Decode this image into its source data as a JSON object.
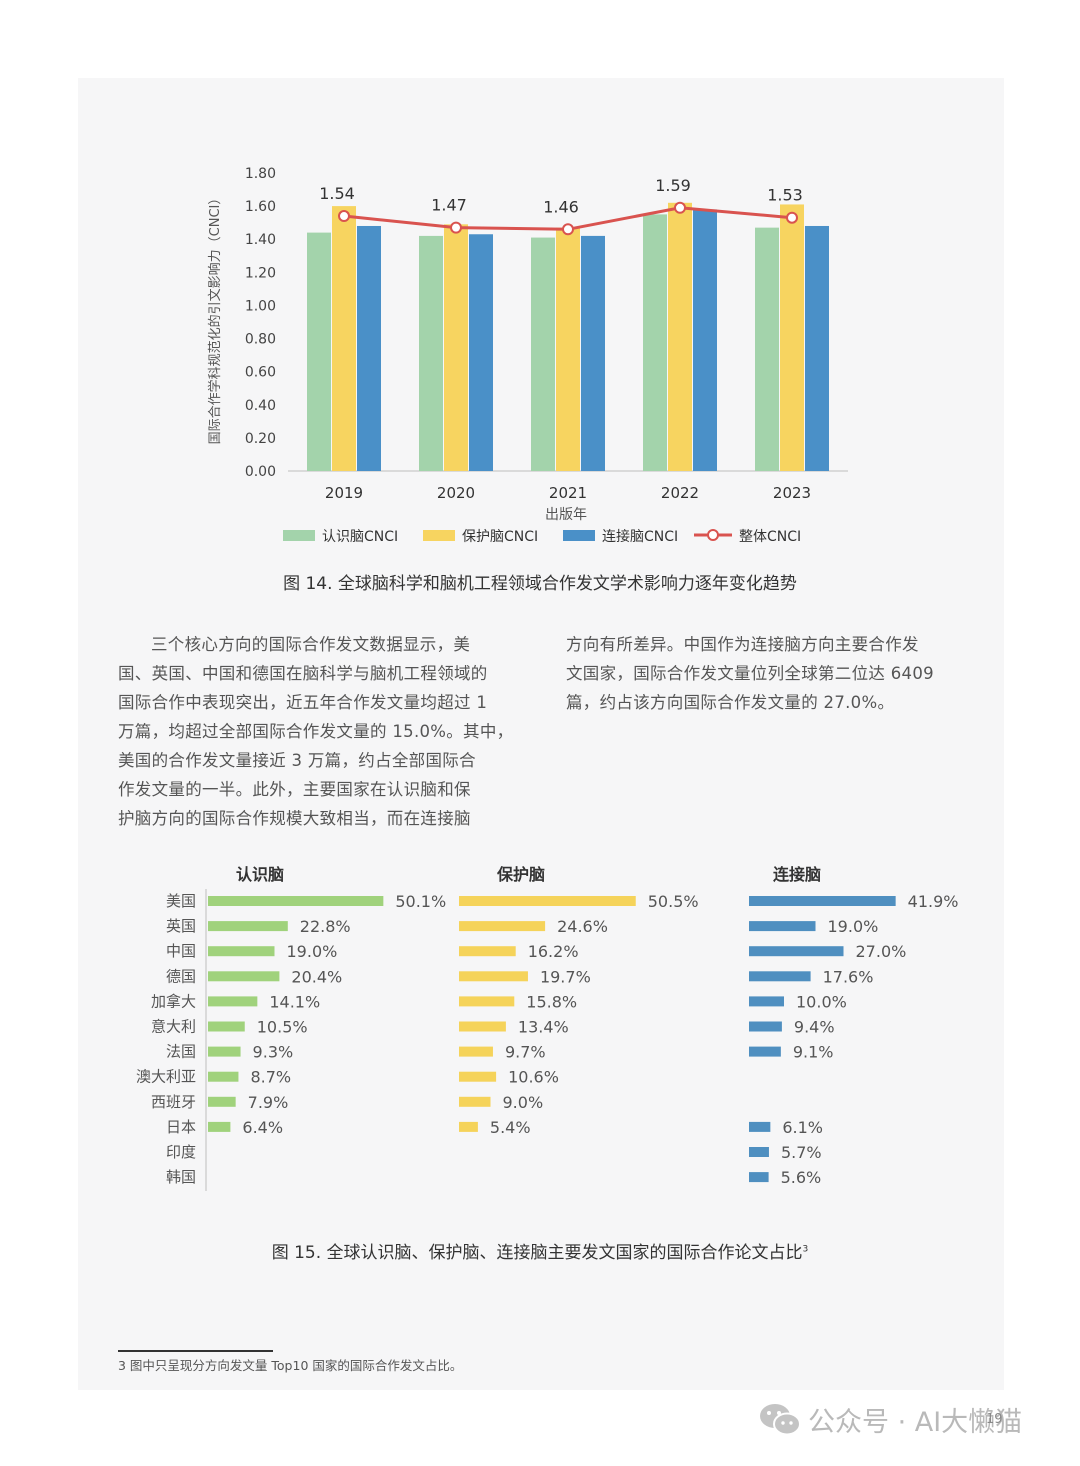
{
  "chart14": {
    "type": "bar",
    "ylabel": "国际合作学科规范化的引文影响力（CNCI）",
    "xlabel": "出版年",
    "ylim": [
      0,
      1.8
    ],
    "yticks": [
      "0.00",
      "0.20",
      "0.40",
      "0.60",
      "0.80",
      "1.00",
      "1.20",
      "1.40",
      "1.60",
      "1.80"
    ],
    "categories": [
      "2019",
      "2020",
      "2021",
      "2022",
      "2023"
    ],
    "series": [
      {
        "name": "认识脑CNCI",
        "color": "#a3d3ab",
        "values": [
          1.44,
          1.42,
          1.41,
          1.55,
          1.47
        ]
      },
      {
        "name": "保护脑CNCI",
        "color": "#f7d460",
        "values": [
          1.6,
          1.49,
          1.47,
          1.62,
          1.61
        ]
      },
      {
        "name": "连接脑CNCI",
        "color": "#4a90c8",
        "values": [
          1.48,
          1.43,
          1.42,
          1.58,
          1.48
        ]
      }
    ],
    "line": {
      "name": "整体CNCI",
      "color": "#d9534f",
      "values": [
        1.54,
        1.47,
        1.46,
        1.59,
        1.53
      ],
      "labels": [
        "1.54",
        "1.47",
        "1.46",
        "1.59",
        "1.53"
      ]
    },
    "legend_position": "bottom"
  },
  "caption14": "图 14. 全球脑科学和脑机工程领域合作发文学术影响力逐年变化趋势",
  "text_left": [
    "三个核心方向的国际合作发文数据显示，美",
    "国、英国、中国和德国在脑科学与脑机工程领域的",
    "国际合作中表现突出，近五年合作发文量均超过 1",
    "万篇，均超过全部国际合作发文量的 15.0%。其中，",
    "美国的合作发文量接近 3 万篇，约占全部国际合",
    "作发文量的一半。此外，主要国家在认识脑和保",
    "护脑方向的国际合作规模大致相当，而在连接脑"
  ],
  "text_right": [
    "方向有所差异。中国作为连接脑方向主要合作发",
    "文国家，国际合作发文量位列全球第二位达 6409",
    "篇，约占该方向国际合作发文量的 27.0%。"
  ],
  "chart15": {
    "type": "bar",
    "countries": [
      "美国",
      "英国",
      "中国",
      "德国",
      "加拿大",
      "意大利",
      "法国",
      "澳大利亚",
      "西班牙",
      "日本",
      "印度",
      "韩国"
    ],
    "panels": [
      {
        "title": "认识脑",
        "color": "#a0d27c",
        "values": [
          50.1,
          22.8,
          19.0,
          20.4,
          14.1,
          10.5,
          9.3,
          8.7,
          7.9,
          6.4,
          null,
          null
        ],
        "labels": [
          "50.1%",
          "22.8%",
          "19.0%",
          "20.4%",
          "14.1%",
          "10.5%",
          "9.3%",
          "8.7%",
          "7.9%",
          "6.4%",
          "",
          ""
        ]
      },
      {
        "title": "保护脑",
        "color": "#f5d35a",
        "values": [
          50.5,
          24.6,
          16.2,
          19.7,
          15.8,
          13.4,
          9.7,
          10.6,
          9.0,
          5.4,
          null,
          null
        ],
        "labels": [
          "50.5%",
          "24.6%",
          "16.2%",
          "19.7%",
          "15.8%",
          "13.4%",
          "9.7%",
          "10.6%",
          "9.0%",
          "5.4%",
          "",
          ""
        ]
      },
      {
        "title": "连接脑",
        "color": "#4f8fc0",
        "values": [
          41.9,
          19.0,
          27.0,
          17.6,
          10.0,
          9.4,
          9.1,
          null,
          null,
          6.1,
          5.7,
          5.6
        ],
        "labels": [
          "41.9%",
          "19.0%",
          "27.0%",
          "17.6%",
          "10.0%",
          "9.4%",
          "9.1%",
          "",
          "",
          "6.1%",
          "5.7%",
          "5.6%"
        ]
      }
    ]
  },
  "caption15": "图 15. 全球认识脑、保护脑、连接脑主要发文国家的国际合作论文占比",
  "caption15_sup": "3",
  "footnote": "3   图中只呈现分方向发文量 Top10 国家的国际合作发文占比。",
  "page_number": "19",
  "watermark": "公众号 · AI大懒猫"
}
